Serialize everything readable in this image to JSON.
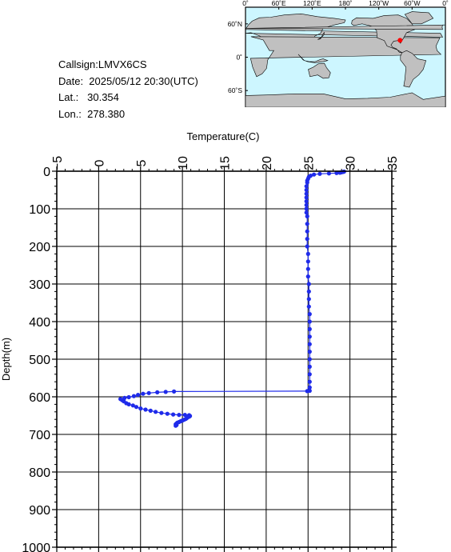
{
  "info": {
    "callsign": "Callsign:LMVX6CS",
    "date": "Date:  2025/05/12 20:30(UTC)",
    "lat": "Lat.:   30.354",
    "lon": "Lon.:  278.380"
  },
  "map": {
    "top_labels": [
      "0˚",
      "60˚E",
      "120˚E",
      "180˚",
      "120˚W",
      "60˚W",
      "0˚"
    ],
    "left_labels": [
      "60˚N",
      "0˚",
      "60˚S"
    ],
    "ocean_color": "#cdf6ff",
    "land_color": "#c0c0c0",
    "marker_color": "#ff0000",
    "marker": {
      "lat": 30.354,
      "lon": 278.38
    }
  },
  "chart_data": {
    "type": "scatter",
    "xlabel": "Temperature(C)",
    "ylabel": "Depth(m)",
    "xlim": [
      -5,
      35
    ],
    "ylim": [
      1000,
      0
    ],
    "x_ticks": [
      -5,
      0,
      5,
      10,
      15,
      20,
      25,
      30,
      35
    ],
    "y_ticks": [
      0,
      100,
      200,
      300,
      400,
      500,
      600,
      700,
      800,
      900,
      1000
    ],
    "grid": true,
    "series_color": "#1f2bea",
    "series": [
      {
        "points": [
          [
            29.3,
            1
          ],
          [
            29.2,
            2
          ],
          [
            29.0,
            3
          ],
          [
            28.8,
            4
          ],
          [
            28.4,
            5
          ],
          [
            27.5,
            6
          ],
          [
            26.4,
            7
          ],
          [
            25.7,
            9
          ],
          [
            25.3,
            12
          ],
          [
            25.1,
            15
          ],
          [
            25.0,
            20
          ],
          [
            24.9,
            25
          ],
          [
            24.9,
            30
          ],
          [
            24.8,
            40
          ],
          [
            24.8,
            50
          ],
          [
            24.8,
            60
          ],
          [
            24.8,
            70
          ],
          [
            24.8,
            80
          ],
          [
            24.8,
            90
          ],
          [
            24.8,
            100
          ],
          [
            24.8,
            110
          ],
          [
            24.9,
            120
          ],
          [
            24.9,
            140
          ],
          [
            24.9,
            160
          ],
          [
            24.9,
            180
          ],
          [
            24.9,
            200
          ],
          [
            25.0,
            220
          ],
          [
            25.0,
            240
          ],
          [
            25.0,
            260
          ],
          [
            25.0,
            280
          ],
          [
            25.1,
            300
          ],
          [
            25.1,
            320
          ],
          [
            25.1,
            340
          ],
          [
            25.1,
            360
          ],
          [
            25.2,
            380
          ],
          [
            25.2,
            400
          ],
          [
            25.2,
            420
          ],
          [
            25.2,
            440
          ],
          [
            25.2,
            460
          ],
          [
            25.2,
            480
          ],
          [
            25.2,
            500
          ],
          [
            25.2,
            520
          ],
          [
            25.2,
            540
          ],
          [
            25.2,
            560
          ],
          [
            25.2,
            575
          ],
          [
            25.2,
            584
          ],
          [
            24.9,
            585
          ],
          [
            9.0,
            586
          ],
          [
            8.0,
            587
          ],
          [
            7.0,
            588
          ],
          [
            6.0,
            590
          ],
          [
            5.3,
            592
          ],
          [
            4.7,
            595
          ],
          [
            4.2,
            598
          ],
          [
            3.6,
            601
          ],
          [
            3.1,
            603
          ],
          [
            2.6,
            606
          ],
          [
            2.8,
            609
          ],
          [
            3.0,
            612
          ],
          [
            3.3,
            617
          ],
          [
            3.6,
            620
          ],
          [
            4.1,
            623
          ],
          [
            4.5,
            627
          ],
          [
            5.0,
            631
          ],
          [
            5.6,
            634
          ],
          [
            6.2,
            637
          ],
          [
            6.8,
            640
          ],
          [
            7.5,
            643
          ],
          [
            8.2,
            645
          ],
          [
            8.9,
            647
          ],
          [
            9.6,
            648
          ],
          [
            10.3,
            648
          ],
          [
            10.8,
            649
          ],
          [
            10.9,
            651
          ],
          [
            10.8,
            653
          ],
          [
            10.6,
            655
          ],
          [
            10.5,
            657
          ],
          [
            10.4,
            659
          ],
          [
            10.2,
            661
          ],
          [
            10.0,
            663
          ],
          [
            9.8,
            665
          ],
          [
            9.6,
            667
          ],
          [
            9.4,
            669
          ],
          [
            9.3,
            671
          ],
          [
            9.2,
            673
          ],
          [
            9.3,
            675
          ],
          [
            9.2,
            677
          ]
        ]
      }
    ]
  }
}
